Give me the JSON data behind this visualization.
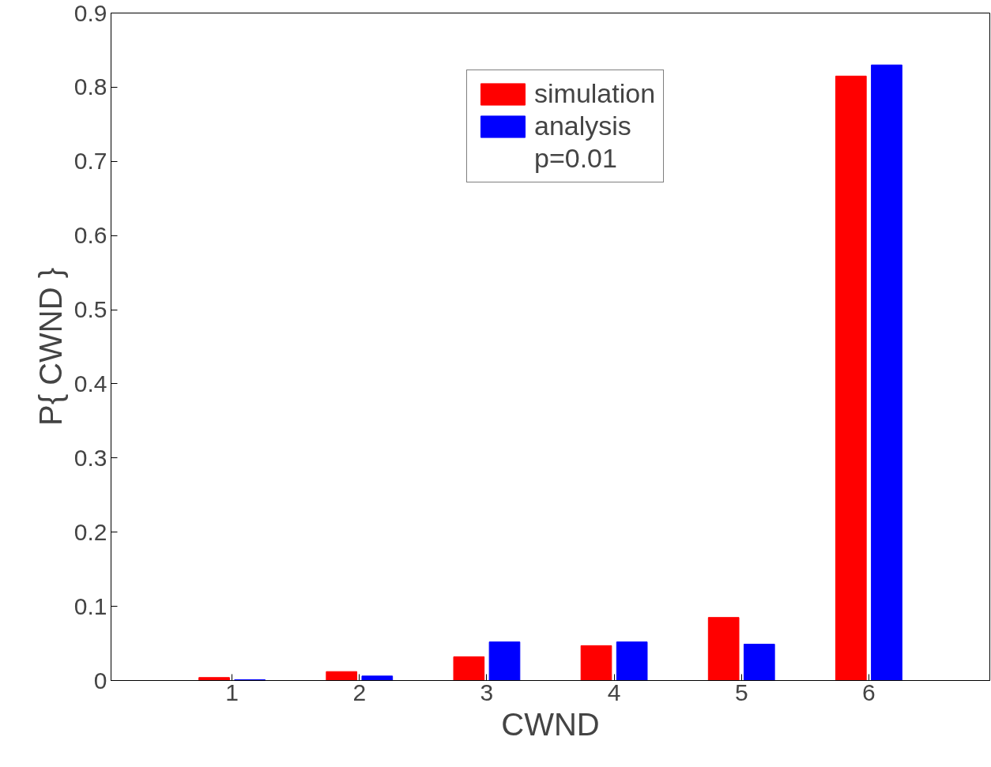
{
  "chart_data": {
    "type": "bar",
    "xlabel": "CWND",
    "ylabel": "P{ CWND }",
    "categories": [
      "1",
      "2",
      "3",
      "4",
      "5",
      "6"
    ],
    "series": [
      {
        "name": "simulation",
        "color": "#ff0000",
        "values": [
          0.004,
          0.012,
          0.032,
          0.047,
          0.085,
          0.815
        ]
      },
      {
        "name": "analysis",
        "color": "#0000ff",
        "values": [
          0.001,
          0.006,
          0.052,
          0.052,
          0.049,
          0.83
        ]
      }
    ],
    "ylim": [
      0,
      0.9
    ],
    "yticks": [
      0,
      0.1,
      0.2,
      0.3,
      0.4,
      0.5,
      0.6,
      0.7,
      0.8,
      0.9
    ],
    "legend": "top right",
    "grid": false,
    "annotations": [
      "p=0.01"
    ]
  }
}
